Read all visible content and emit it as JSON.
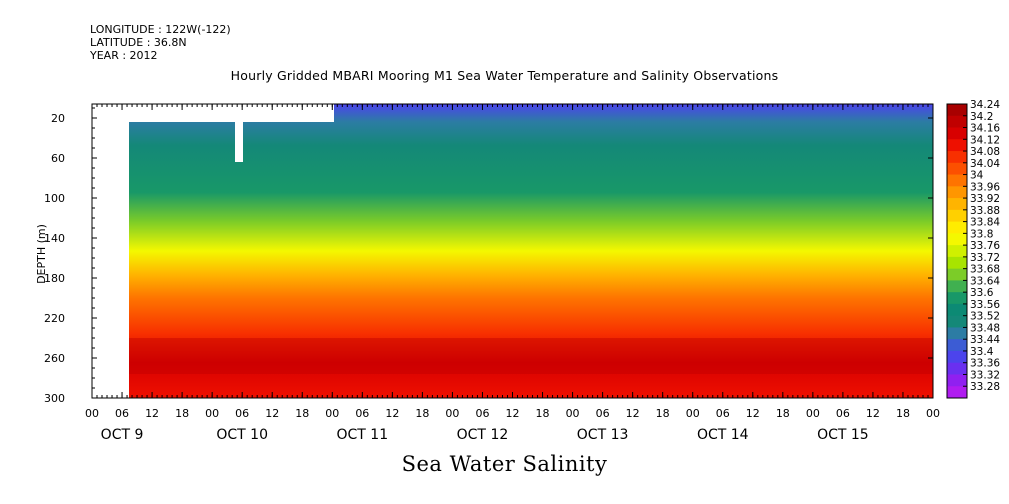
{
  "header": {
    "longitude": "LONGITUDE : 122W(-122)",
    "latitude": "LATITUDE : 36.8N",
    "year": "YEAR : 2012"
  },
  "title": "Hourly Gridded MBARI Mooring M1 Sea Water Temperature and Salinity Observations",
  "variable_title": "Sea Water Salinity",
  "chart_data": {
    "type": "heatmap",
    "title": "Hourly Gridded MBARI Mooring M1 Sea Water Temperature and Salinity Observations",
    "xlabel": "",
    "ylabel": "DEPTH (m)",
    "colorbar_label": "Sea Water Salinity",
    "y_ticks": [
      20,
      60,
      100,
      140,
      180,
      220,
      260,
      300
    ],
    "ylim": [
      300,
      6
    ],
    "x_hour_ticks": [
      "00",
      "06",
      "12",
      "18",
      "00",
      "06",
      "12",
      "18",
      "00",
      "06",
      "12",
      "18",
      "00",
      "06",
      "12",
      "18",
      "00",
      "06",
      "12",
      "18",
      "00",
      "06",
      "12",
      "18",
      "00",
      "06",
      "12",
      "18",
      "00"
    ],
    "x_day_labels": [
      "OCT  9",
      "OCT 10",
      "OCT 11",
      "OCT 12",
      "OCT 13",
      "OCT 14",
      "OCT 15"
    ],
    "colorbar_levels": [
      "34.24",
      "34.2",
      "34.16",
      "34.12",
      "34.08",
      "34.04",
      "34",
      "33.96",
      "33.92",
      "33.88",
      "33.84",
      "33.8",
      "33.76",
      "33.72",
      "33.68",
      "33.64",
      "33.6",
      "33.56",
      "33.52",
      "33.48",
      "33.44",
      "33.4",
      "33.36",
      "33.32",
      "33.28"
    ],
    "colorbar_colors": [
      "#a80000",
      "#c00000",
      "#d80000",
      "#ee1000",
      "#f83000",
      "#fc5000",
      "#fe7400",
      "#ff9600",
      "#ffb400",
      "#ffd000",
      "#ffec00",
      "#f4f800",
      "#d0f000",
      "#a8e400",
      "#7ccc28",
      "#40b050",
      "#189868",
      "#0c8a74",
      "#148878",
      "#2c7ca4",
      "#3c5cd4",
      "#4c44ec",
      "#6a30f0",
      "#9020f0",
      "#b01cf0"
    ],
    "depth_profile": [
      {
        "depth": 10,
        "salinity": 33.44
      },
      {
        "depth": 20,
        "salinity": 33.52
      },
      {
        "depth": 60,
        "salinity": 33.58
      },
      {
        "depth": 100,
        "salinity": 33.62
      },
      {
        "depth": 130,
        "salinity": 33.74
      },
      {
        "depth": 160,
        "salinity": 33.88
      },
      {
        "depth": 180,
        "salinity": 33.96
      },
      {
        "depth": 220,
        "salinity": 34.08
      },
      {
        "depth": 260,
        "salinity": 34.18
      },
      {
        "depth": 300,
        "salinity": 34.14
      }
    ],
    "grid": false
  }
}
